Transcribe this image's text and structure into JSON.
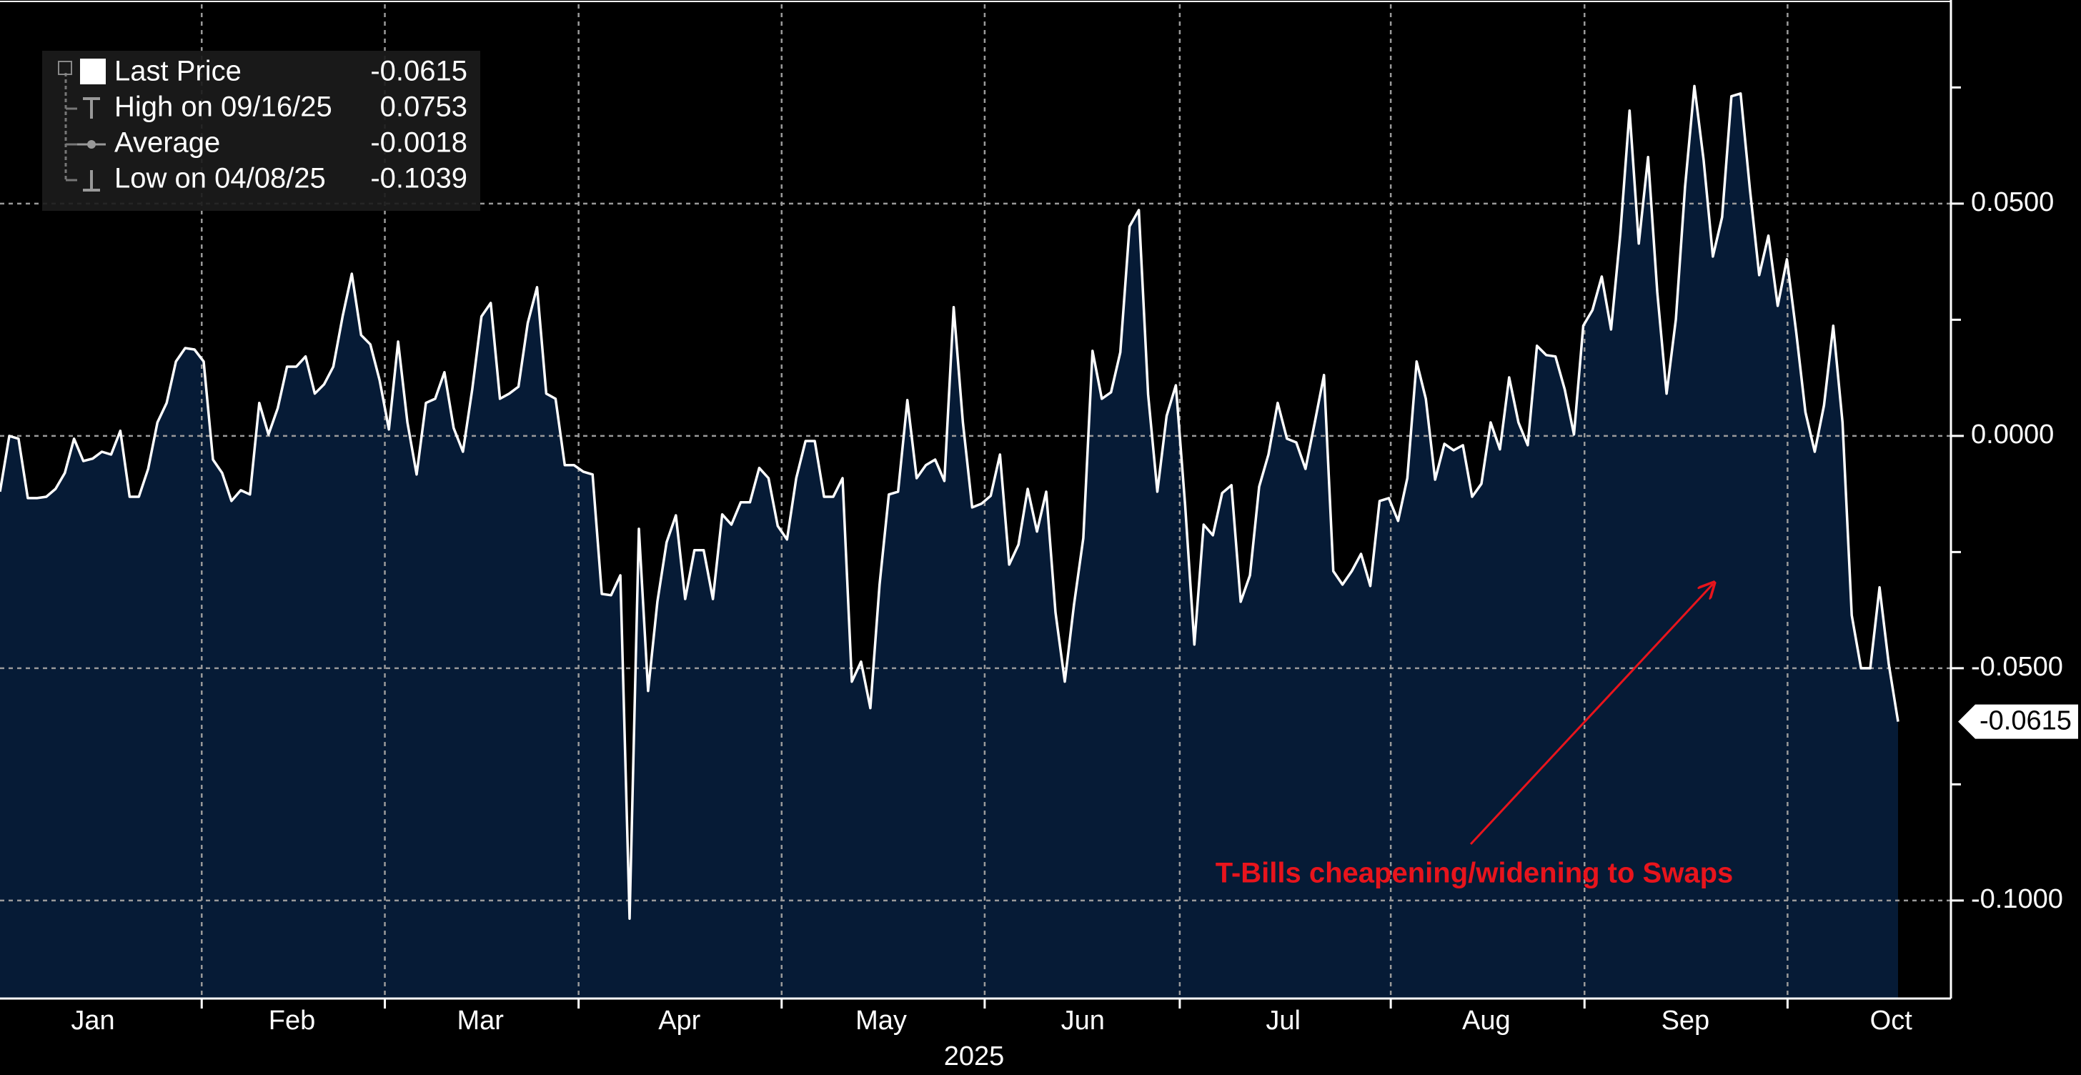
{
  "chart_data": {
    "type": "area",
    "series": [
      {
        "name": "Last Price",
        "color": "#ffffff",
        "fill": "#061b36",
        "values": [
          -0.012,
          0.0,
          -0.0006,
          -0.0134,
          -0.0134,
          -0.0131,
          -0.0114,
          -0.008,
          -0.0006,
          -0.0054,
          -0.0049,
          -0.0034,
          -0.004,
          0.0011,
          -0.0131,
          -0.0131,
          -0.0071,
          0.0029,
          0.0071,
          0.016,
          0.0189,
          0.0186,
          0.016,
          -0.0051,
          -0.008,
          -0.014,
          -0.0117,
          -0.0126,
          0.0071,
          0.0003,
          0.006,
          0.0149,
          0.0149,
          0.0171,
          0.0091,
          0.0111,
          0.0149,
          0.0257,
          0.0349,
          0.0217,
          0.0197,
          0.012,
          0.0014,
          0.0203,
          0.0029,
          -0.0083,
          0.0071,
          0.008,
          0.0137,
          0.0017,
          -0.0034,
          0.01,
          0.0257,
          0.0286,
          0.008,
          0.0091,
          0.0106,
          0.0243,
          0.032,
          0.0091,
          0.008,
          -0.0063,
          -0.0063,
          -0.0077,
          -0.0083,
          -0.034,
          -0.0343,
          -0.03,
          -0.1039,
          -0.02,
          -0.0549,
          -0.0357,
          -0.0229,
          -0.0171,
          -0.0351,
          -0.0246,
          -0.0246,
          -0.0351,
          -0.0169,
          -0.0191,
          -0.0143,
          -0.0143,
          -0.0069,
          -0.0091,
          -0.0194,
          -0.0223,
          -0.0091,
          -0.0011,
          -0.0011,
          -0.0131,
          -0.0131,
          -0.0091,
          -0.0529,
          -0.0486,
          -0.0586,
          -0.032,
          -0.0126,
          -0.012,
          0.0077,
          -0.0091,
          -0.0063,
          -0.0051,
          -0.0097,
          0.0277,
          0.0029,
          -0.0154,
          -0.0146,
          -0.0129,
          -0.004,
          -0.0277,
          -0.0234,
          -0.0114,
          -0.0206,
          -0.012,
          -0.038,
          -0.0529,
          -0.0363,
          -0.022,
          0.0183,
          0.008,
          0.0094,
          0.018,
          0.0451,
          0.0486,
          0.0089,
          -0.012,
          0.0043,
          0.0109,
          -0.0149,
          -0.0449,
          -0.0191,
          -0.0214,
          -0.0123,
          -0.0106,
          -0.0357,
          -0.03,
          -0.0109,
          -0.004,
          0.0071,
          -0.0006,
          -0.0014,
          -0.0071,
          0.0029,
          0.0131,
          -0.0291,
          -0.032,
          -0.0291,
          -0.0254,
          -0.0323,
          -0.014,
          -0.0134,
          -0.0183,
          -0.0091,
          0.016,
          0.008,
          -0.0094,
          -0.0017,
          -0.0031,
          -0.002,
          -0.0131,
          -0.0103,
          0.0029,
          -0.0029,
          0.0126,
          0.0029,
          -0.002,
          0.0194,
          0.0174,
          0.0171,
          0.01,
          0.0003,
          0.0237,
          0.0271,
          0.0343,
          0.0229,
          0.0434,
          0.07,
          0.0414,
          0.06,
          0.0309,
          0.0091,
          0.0251,
          0.0537,
          0.0753,
          0.0594,
          0.0386,
          0.0471,
          0.0731,
          0.0737,
          0.0531,
          0.0346,
          0.0431,
          0.028,
          0.038,
          0.0223,
          0.0051,
          -0.0034,
          0.0066,
          0.0237,
          0.0029,
          -0.0386,
          -0.05,
          -0.05,
          -0.0326,
          -0.0491,
          -0.0615
        ]
      }
    ],
    "stats": [
      {
        "label": "High on 09/16/25",
        "value": 0.0753
      },
      {
        "label": "Average",
        "value": -0.0018
      },
      {
        "label": "Low on 04/08/25",
        "value": -0.1039
      }
    ],
    "x_labels": [
      "Jan",
      "Feb",
      "Mar",
      "Apr",
      "May",
      "Jun",
      "Jul",
      "Aug",
      "Sep",
      "Oct"
    ],
    "x_axis_label": "2025",
    "ylim": [
      -0.1211,
      0.0929
    ],
    "yticks": [
      {
        "value": -0.1,
        "label": "-0.1000"
      },
      {
        "value": -0.05,
        "label": "-0.0500"
      },
      {
        "value": 0,
        "label": "0.0000"
      },
      {
        "value": 0.05,
        "label": "0.0500"
      }
    ],
    "minor_yticks": [
      -0.075,
      -0.025,
      0.025,
      0.075
    ],
    "grid": true,
    "annotation": {
      "text": "T-Bills cheapening/widening to Swaps",
      "color": "#e8141c"
    }
  }
}
